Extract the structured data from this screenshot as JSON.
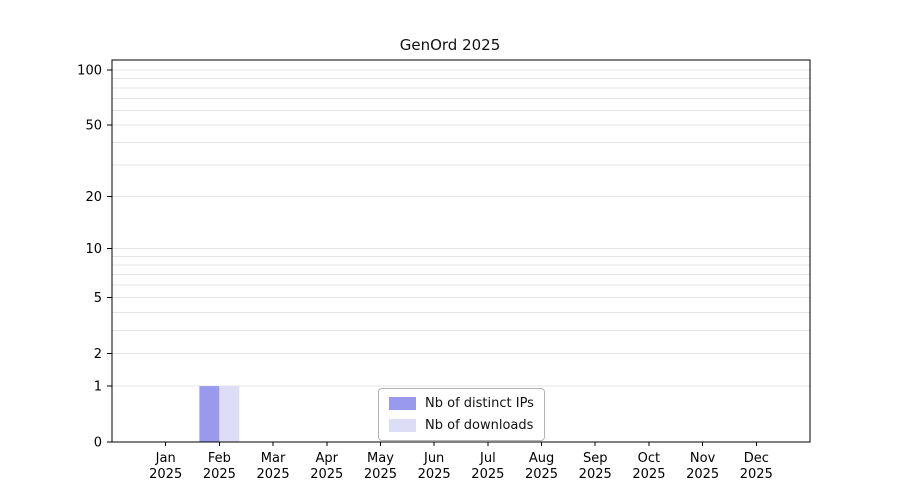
{
  "chart_data": {
    "type": "bar",
    "title": "GenOrd 2025",
    "categories": [
      "Jan",
      "Feb",
      "Mar",
      "Apr",
      "May",
      "Jun",
      "Jul",
      "Aug",
      "Sep",
      "Oct",
      "Nov",
      "Dec"
    ],
    "year_label": "2025",
    "series": [
      {
        "name": "Nb of distinct IPs",
        "color": "#9999ee",
        "values": [
          0,
          1,
          0,
          0,
          0,
          0,
          0,
          0,
          0,
          0,
          0,
          0
        ]
      },
      {
        "name": "Nb of downloads",
        "color": "#ddddf8",
        "values": [
          0,
          1,
          0,
          0,
          0,
          0,
          0,
          0,
          0,
          0,
          0,
          0
        ]
      }
    ],
    "yscale": "log1p",
    "ylim": [
      0,
      100
    ],
    "yticks": [
      0,
      1,
      2,
      5,
      10,
      20,
      50,
      100
    ],
    "grid_values": [
      1,
      2,
      3,
      4,
      5,
      6,
      7,
      8,
      9,
      10,
      20,
      30,
      40,
      50,
      60,
      70,
      80,
      90,
      100
    ],
    "grid": true,
    "legend_position": "bottom-center"
  }
}
